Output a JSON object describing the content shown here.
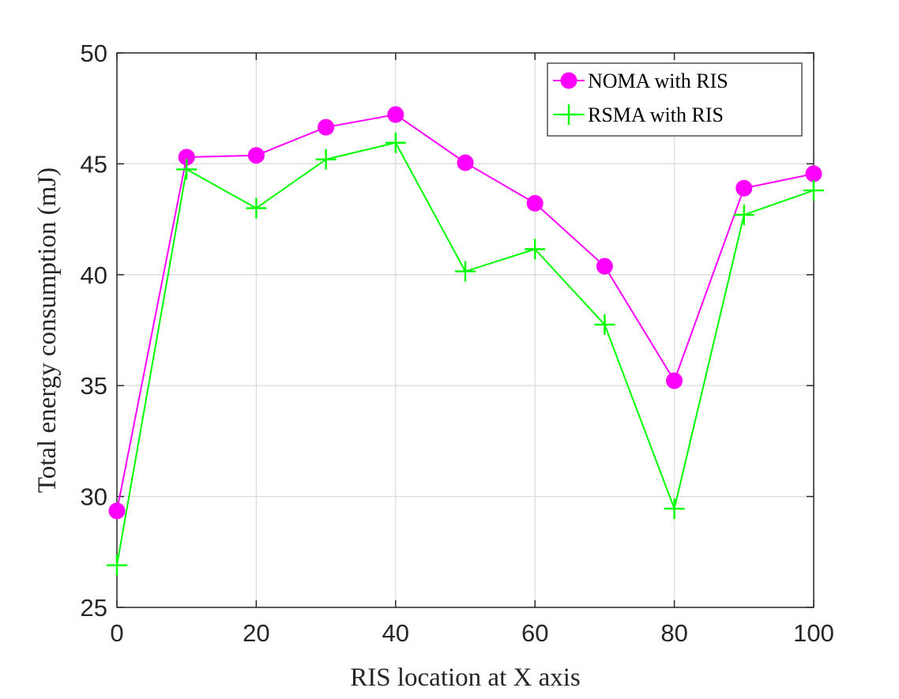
{
  "chart_data": {
    "type": "line",
    "title": "",
    "xlabel": "RIS location at X axis",
    "ylabel": "Total energy consumption (mJ)",
    "xlim": [
      0,
      100
    ],
    "ylim": [
      25,
      50
    ],
    "xticks": [
      0,
      20,
      40,
      60,
      80,
      100
    ],
    "yticks": [
      25,
      30,
      35,
      40,
      45,
      50
    ],
    "grid": true,
    "legend_position": "top-right",
    "x": [
      0,
      10,
      20,
      30,
      40,
      50,
      60,
      70,
      80,
      90,
      100
    ],
    "series": [
      {
        "name": "NOMA with RIS",
        "color": "#ff00ff",
        "marker": "circle",
        "values": [
          29.35,
          45.3,
          45.38,
          46.65,
          47.22,
          45.05,
          43.22,
          40.38,
          35.22,
          43.9,
          44.55
        ]
      },
      {
        "name": "RSMA with RIS",
        "color": "#00ff00",
        "marker": "plus",
        "values": [
          26.9,
          44.75,
          43.0,
          45.2,
          45.95,
          40.15,
          41.15,
          37.75,
          29.45,
          42.7,
          43.8
        ]
      }
    ]
  }
}
